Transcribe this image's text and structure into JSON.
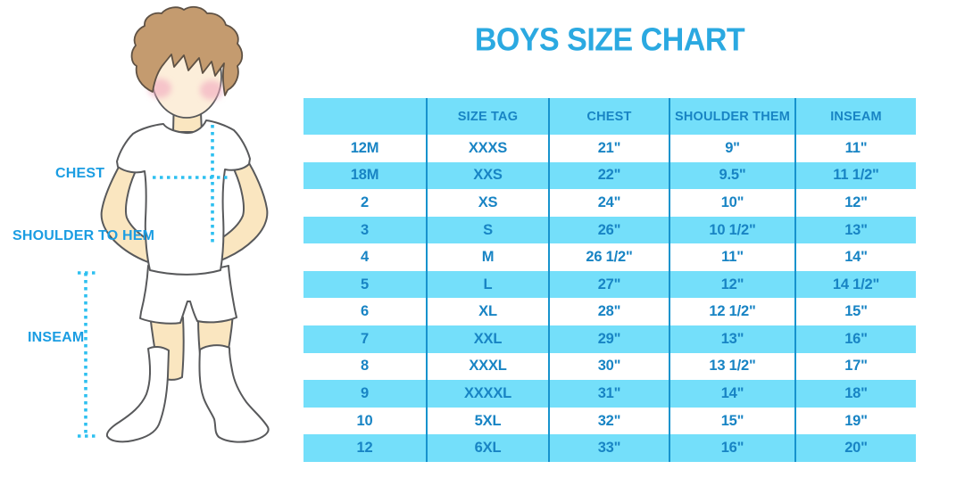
{
  "title": "BOYS SIZE CHART",
  "colors": {
    "title_blue": "#2BA9E1",
    "row_stripe_blue": "#74DFFA",
    "table_text_blue": "#1884C4",
    "divider_blue": "#1793CD",
    "label_blue": "#1B9DE2",
    "dotted_line_cyan": "#2EC0F0"
  },
  "figure": {
    "labels": {
      "chest": "CHEST",
      "shoulder_to_hem": "SHOULDER TO HEM",
      "inseam": "INSEAM"
    }
  },
  "chart_data": {
    "type": "table",
    "title": "BOYS SIZE CHART",
    "columns": [
      "",
      "SIZE TAG",
      "CHEST",
      "SHOULDER THEM",
      "INSEAM"
    ],
    "rows": [
      [
        "12M",
        "XXXS",
        "21\"",
        "9\"",
        "11\""
      ],
      [
        "18M",
        "XXS",
        "22\"",
        "9.5\"",
        "11 1/2\""
      ],
      [
        "2",
        "XS",
        "24\"",
        "10\"",
        "12\""
      ],
      [
        "3",
        "S",
        "26\"",
        "10 1/2\"",
        "13\""
      ],
      [
        "4",
        "M",
        "26 1/2\"",
        "11\"",
        "14\""
      ],
      [
        "5",
        "L",
        "27\"",
        "12\"",
        "14 1/2\""
      ],
      [
        "6",
        "XL",
        "28\"",
        "12 1/2\"",
        "15\""
      ],
      [
        "7",
        "XXL",
        "29\"",
        "13\"",
        "16\""
      ],
      [
        "8",
        "XXXL",
        "30\"",
        "13 1/2\"",
        "17\""
      ],
      [
        "9",
        "XXXXL",
        "31\"",
        "14\"",
        "18\""
      ],
      [
        "10",
        "5XL",
        "32\"",
        "15\"",
        "19\""
      ],
      [
        "12",
        "6XL",
        "33\"",
        "16\"",
        "20\""
      ]
    ]
  }
}
